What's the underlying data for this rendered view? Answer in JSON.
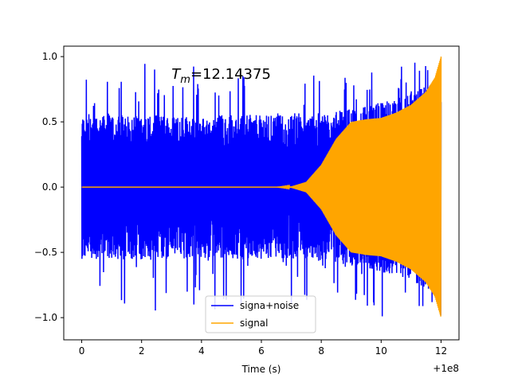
{
  "chart_data": {
    "type": "line",
    "title": "",
    "xlabel": "Time (s)",
    "ylabel": "",
    "x_offset_label": "+1e8",
    "xlim": [
      -0.6,
      12.6
    ],
    "ylim": [
      -1.17,
      1.08
    ],
    "xticks": [
      0,
      2,
      4,
      6,
      8,
      10,
      12
    ],
    "xtick_labels": [
      "0",
      "2",
      "4",
      "6",
      "8",
      "10",
      "12"
    ],
    "yticks": [
      -1.0,
      -0.5,
      0.0,
      0.5,
      1.0
    ],
    "ytick_labels": [
      "−1.0",
      "−0.5",
      "0.0",
      "0.5",
      "1.0"
    ],
    "grid": false,
    "legend_position": "lower-center",
    "annotation": {
      "prefix": "T",
      "subscript": "m",
      "value": "=12.14375",
      "x": 3.0,
      "y": 0.83
    },
    "series": [
      {
        "name": "signa+noise",
        "color": "#0000ff",
        "envelope_x": [
          0,
          1,
          2,
          3,
          4,
          5,
          6,
          7,
          7.5,
          8,
          8.5,
          9,
          9.5,
          10,
          10.5,
          11,
          11.5,
          12
        ],
        "envelope_typical": [
          0.55,
          0.55,
          0.56,
          0.55,
          0.55,
          0.56,
          0.55,
          0.55,
          0.56,
          0.57,
          0.58,
          0.6,
          0.62,
          0.65,
          0.68,
          0.72,
          0.78,
          0.88
        ],
        "envelope_peak": [
          0.9,
          0.98,
          1.0,
          0.95,
          0.93,
          0.97,
          0.95,
          0.92,
          0.93,
          0.95,
          0.9,
          0.92,
          0.95,
          1.0,
          0.95,
          0.98,
          0.95,
          1.0
        ]
      },
      {
        "name": "signal",
        "color": "#ffa500",
        "envelope_x": [
          0,
          6.5,
          7.0,
          7.5,
          8.0,
          8.5,
          9.0,
          9.5,
          10.0,
          10.5,
          11.0,
          11.5,
          11.8,
          12.0
        ],
        "envelope": [
          0.0,
          0.0,
          0.005,
          0.04,
          0.17,
          0.37,
          0.5,
          0.52,
          0.53,
          0.57,
          0.63,
          0.73,
          0.84,
          1.0
        ]
      }
    ]
  }
}
